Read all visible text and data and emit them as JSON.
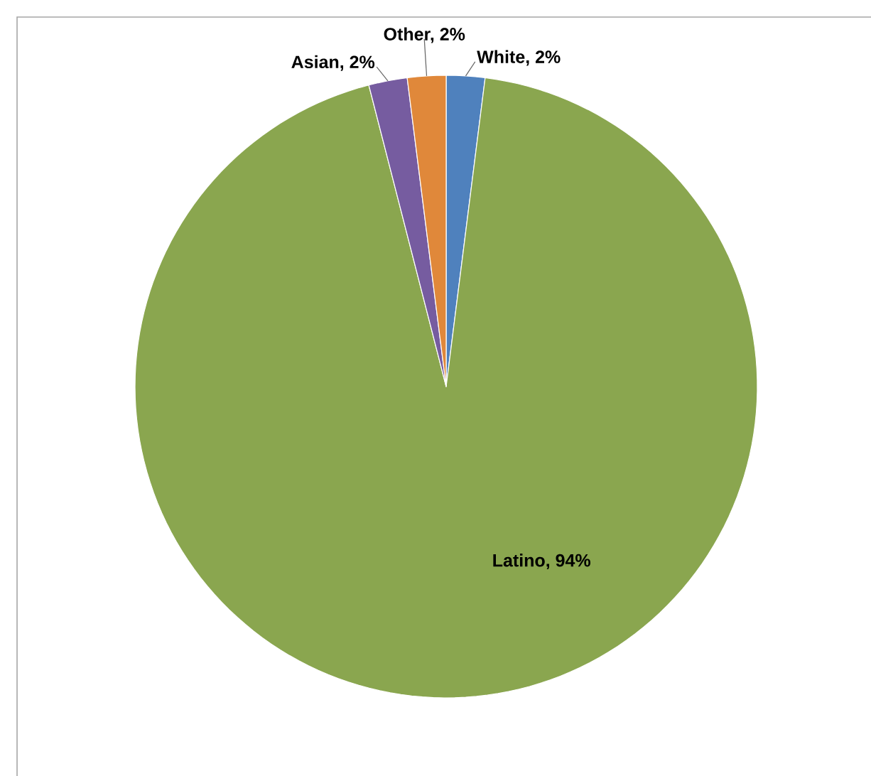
{
  "chart_data": {
    "type": "pie",
    "categories": [
      null,
      null,
      null,
      null
    ],
    "values": [
      2,
      94,
      2,
      2
    ],
    "value_labels": [
      "White, 2%",
      "Latino, 94%",
      "Asian, 2%",
      "Other, 2%"
    ],
    "colors": [
      "#4f81bd",
      "#8aa64f",
      "#765ca0",
      "#e0883a"
    ]
  }
}
